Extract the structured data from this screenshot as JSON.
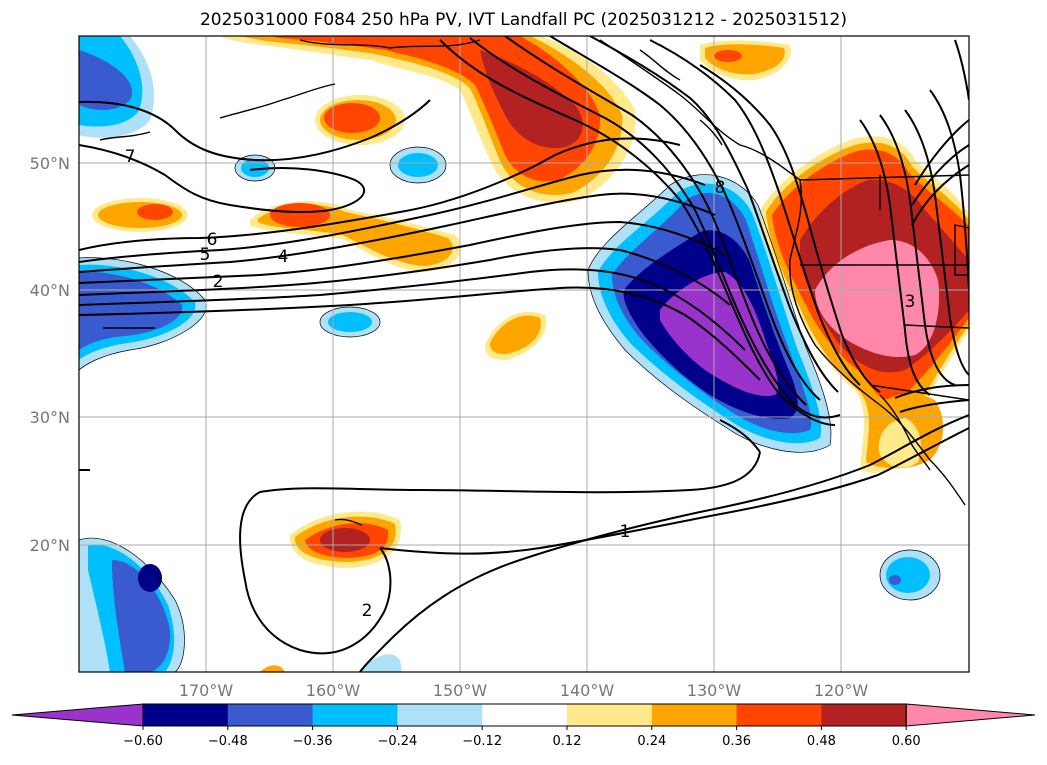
{
  "title": "2025031000 F084 250 hPa PV, IVT Landfall PC (2025031212 - 2025031512)",
  "map": {
    "lat_ticks": [
      "50°N",
      "40°N",
      "30°N",
      "20°N"
    ],
    "lon_ticks": [
      "170°W",
      "160°W",
      "150°W",
      "140°W",
      "130°W",
      "120°W"
    ]
  },
  "contour_labels": [
    "7",
    "6",
    "5",
    "4",
    "2",
    "8",
    "3",
    "1",
    "2"
  ],
  "colorbar": {
    "ticks": [
      "−0.60",
      "−0.48",
      "−0.36",
      "−0.24",
      "−0.12",
      "0.12",
      "0.24",
      "0.36",
      "0.48",
      "0.60"
    ],
    "colors": [
      "#9933cc",
      "#00008b",
      "#3a5bcf",
      "#00bfff",
      "#aee1f8",
      "#ffffff",
      "#ffe98a",
      "#ffa500",
      "#ff4500",
      "#b22222",
      "#ff88aa"
    ]
  }
}
